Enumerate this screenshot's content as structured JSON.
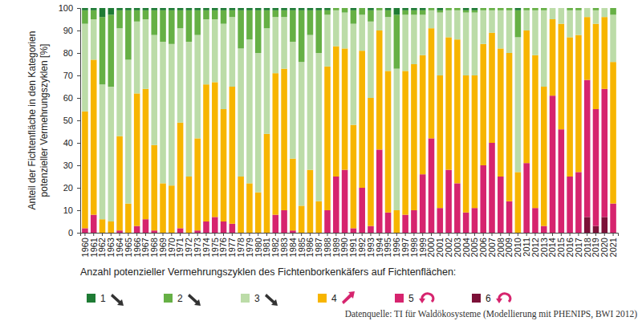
{
  "chart_data": {
    "type": "bar",
    "stacked": true,
    "grid": false,
    "legend": "bottom",
    "ylabel": [
      "Anteil der Fichtenfläche in den Kategorien",
      "potenzieller Vermehrungszyklen [%]"
    ],
    "legend_title": "Anzahl potenzieller Vermehrungszyklen des Fichtenborkenkäfers auf Fichtenflächen:",
    "source": "Datenquelle: TI für Waldökosysteme (Modellierung mit PHENIPS, BWI 2012)",
    "ylim": [
      0,
      100
    ],
    "yticks": [
      0,
      10,
      20,
      30,
      40,
      50,
      60,
      70,
      80,
      90,
      100
    ],
    "categories": [
      "1960",
      "1961",
      "1962",
      "1963",
      "1964",
      "1965",
      "1966",
      "1967",
      "1968",
      "1969",
      "1970",
      "1971",
      "1972",
      "1973",
      "1974",
      "1975",
      "1976",
      "1977",
      "1978",
      "1979",
      "1980",
      "1981",
      "1982",
      "1983",
      "1984",
      "1985",
      "1986",
      "1987",
      "1988",
      "1989",
      "1990",
      "1991",
      "1992",
      "1993",
      "1994",
      "1995",
      "1996",
      "1997",
      "1998",
      "1999",
      "2000",
      "2001",
      "2002",
      "2003",
      "2004",
      "2005",
      "2006",
      "2007",
      "2008",
      "2009",
      "2010",
      "2011",
      "2012",
      "2013",
      "2014",
      "2015",
      "2016",
      "2017",
      "2018",
      "2019",
      "2020",
      "2021"
    ],
    "series": [
      {
        "name": "1",
        "color": "#1e7b34",
        "values": [
          1,
          1,
          4,
          3,
          1,
          1,
          1,
          1,
          1,
          1,
          1,
          1,
          1,
          1,
          1,
          1,
          1,
          1,
          1,
          1,
          1,
          1,
          1,
          1,
          1,
          1,
          1,
          1,
          1,
          0,
          0,
          1,
          0,
          1,
          0,
          1,
          3,
          1,
          1,
          1,
          0,
          1,
          0,
          0,
          1,
          1,
          0,
          0,
          0,
          0,
          1,
          0,
          0,
          0,
          0,
          0,
          0,
          0,
          0,
          0,
          0,
          0
        ]
      },
      {
        "name": "2",
        "color": "#66b045",
        "values": [
          6,
          4,
          30,
          32,
          8,
          22,
          5,
          4,
          11,
          14,
          15,
          8,
          14,
          11,
          4,
          4,
          6,
          3,
          17,
          13,
          19,
          8,
          3,
          3,
          14,
          23,
          11,
          19,
          2,
          1,
          2,
          6,
          3,
          5,
          1,
          3,
          24,
          2,
          2,
          2,
          1,
          1,
          1,
          1,
          1,
          1,
          1,
          1,
          1,
          1,
          12,
          1,
          1,
          1,
          0,
          0,
          1,
          1,
          0,
          1,
          0,
          3
        ]
      },
      {
        "name": "3",
        "color": "#bcdca8",
        "values": [
          39,
          18,
          60,
          60,
          48,
          64,
          32,
          31,
          49,
          63,
          63,
          42,
          60,
          46,
          29,
          28,
          38,
          31,
          57,
          64,
          62,
          47,
          25,
          23,
          52,
          64,
          60,
          66,
          23,
          16,
          16,
          45,
          16,
          34,
          9,
          24,
          63,
          25,
          22,
          18,
          8,
          28,
          12,
          13,
          28,
          28,
          15,
          10,
          17,
          19,
          60,
          9,
          20,
          34,
          5,
          7,
          12,
          11,
          4,
          6,
          4,
          21
        ]
      },
      {
        "name": "4",
        "color": "#f7b500",
        "values": [
          52,
          69,
          6,
          5,
          42,
          13,
          59,
          58,
          38,
          22,
          21,
          47,
          25,
          41,
          61,
          60,
          50,
          61,
          25,
          22,
          18,
          44,
          63,
          63,
          32,
          12,
          28,
          14,
          64,
          58,
          54,
          46,
          61,
          57,
          53,
          63,
          10,
          64,
          65,
          53,
          49,
          59,
          59,
          64,
          61,
          59,
          54,
          49,
          57,
          66,
          27,
          59,
          68,
          62,
          34,
          47,
          62,
          61,
          28,
          38,
          32,
          63
        ]
      },
      {
        "name": "5",
        "color": "#d6246e",
        "values": [
          2,
          8,
          0,
          0,
          1,
          0,
          3,
          6,
          1,
          0,
          0,
          2,
          0,
          1,
          5,
          7,
          5,
          4,
          0,
          0,
          0,
          0,
          8,
          10,
          1,
          0,
          0,
          0,
          10,
          25,
          28,
          2,
          20,
          3,
          37,
          9,
          0,
          8,
          10,
          26,
          42,
          11,
          28,
          22,
          9,
          11,
          30,
          40,
          25,
          14,
          0,
          31,
          11,
          3,
          61,
          46,
          25,
          27,
          61,
          52,
          57,
          13
        ]
      },
      {
        "name": "6",
        "color": "#7c1038",
        "values": [
          0,
          0,
          0,
          0,
          0,
          0,
          0,
          0,
          0,
          0,
          0,
          0,
          0,
          0,
          0,
          0,
          0,
          0,
          0,
          0,
          0,
          0,
          0,
          0,
          0,
          0,
          0,
          0,
          0,
          0,
          0,
          0,
          0,
          0,
          0,
          0,
          0,
          0,
          0,
          0,
          0,
          0,
          0,
          0,
          0,
          0,
          0,
          0,
          0,
          0,
          0,
          0,
          0,
          0,
          0,
          0,
          0,
          0,
          7,
          3,
          7,
          0
        ]
      }
    ]
  }
}
